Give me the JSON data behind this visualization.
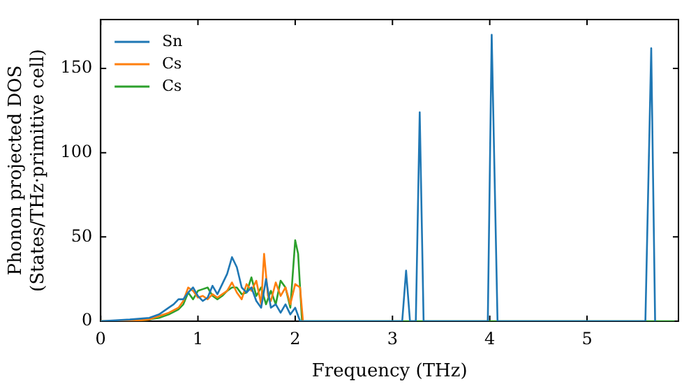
{
  "chart_data": {
    "type": "line",
    "xlabel": "Frequency (THz)",
    "ylabel": "Phonon projected DOS\n(States/THz·primitive cell)",
    "xlim": [
      0,
      5.94
    ],
    "xticks": [
      0,
      1,
      2,
      3,
      4,
      5
    ],
    "ylim": [
      0,
      179
    ],
    "yticks": [
      0,
      50,
      100,
      150
    ],
    "legend": "top left",
    "grid": false,
    "marker": "none",
    "line_style": "solid",
    "series": [
      {
        "name": "Sn",
        "color": "#1f77b4",
        "x": [
          0,
          0.3,
          0.5,
          0.6,
          0.7,
          0.75,
          0.8,
          0.85,
          0.9,
          0.95,
          1.0,
          1.05,
          1.1,
          1.15,
          1.2,
          1.25,
          1.3,
          1.35,
          1.4,
          1.45,
          1.5,
          1.55,
          1.6,
          1.65,
          1.7,
          1.75,
          1.8,
          1.85,
          1.9,
          1.95,
          2.0,
          2.05,
          2.08,
          3.1,
          3.14,
          3.18,
          3.24,
          3.28,
          3.32,
          3.98,
          4.02,
          4.08,
          5.6,
          5.66,
          5.7
        ],
        "values": [
          0,
          1,
          2,
          4,
          8,
          10,
          13,
          13,
          17,
          20,
          15,
          12,
          14,
          21,
          16,
          22,
          28,
          38,
          32,
          20,
          17,
          20,
          12,
          8,
          25,
          8,
          10,
          5,
          10,
          4,
          8,
          0,
          0,
          0,
          30,
          0,
          0,
          124,
          0,
          0,
          170,
          0,
          0,
          162,
          0
        ]
      },
      {
        "name": "Cs",
        "color": "#ff7f0e",
        "x": [
          0,
          0.3,
          0.5,
          0.6,
          0.7,
          0.8,
          0.85,
          0.9,
          0.95,
          1.0,
          1.05,
          1.1,
          1.15,
          1.2,
          1.25,
          1.3,
          1.35,
          1.4,
          1.45,
          1.5,
          1.55,
          1.6,
          1.65,
          1.68,
          1.72,
          1.75,
          1.8,
          1.85,
          1.9,
          1.95,
          2.0,
          2.05,
          2.08
        ],
        "values": [
          0,
          0,
          1,
          3,
          5,
          8,
          12,
          20,
          18,
          14,
          15,
          13,
          16,
          14,
          16,
          18,
          23,
          17,
          13,
          22,
          18,
          24,
          10,
          40,
          15,
          12,
          23,
          15,
          20,
          10,
          22,
          20,
          0
        ]
      },
      {
        "name": "Cs",
        "color": "#2ca02c",
        "x": [
          0,
          0.3,
          0.5,
          0.6,
          0.7,
          0.8,
          0.85,
          0.9,
          0.95,
          1.0,
          1.05,
          1.1,
          1.15,
          1.2,
          1.25,
          1.3,
          1.35,
          1.4,
          1.45,
          1.5,
          1.55,
          1.6,
          1.65,
          1.7,
          1.75,
          1.8,
          1.85,
          1.9,
          1.95,
          2.0,
          2.03,
          2.07,
          5.9
        ],
        "values": [
          0,
          0,
          1,
          2,
          4,
          7,
          10,
          17,
          13,
          18,
          19,
          20,
          15,
          13,
          15,
          18,
          20,
          20,
          16,
          17,
          26,
          15,
          20,
          10,
          18,
          10,
          24,
          20,
          8,
          48,
          40,
          0,
          0
        ]
      }
    ]
  }
}
